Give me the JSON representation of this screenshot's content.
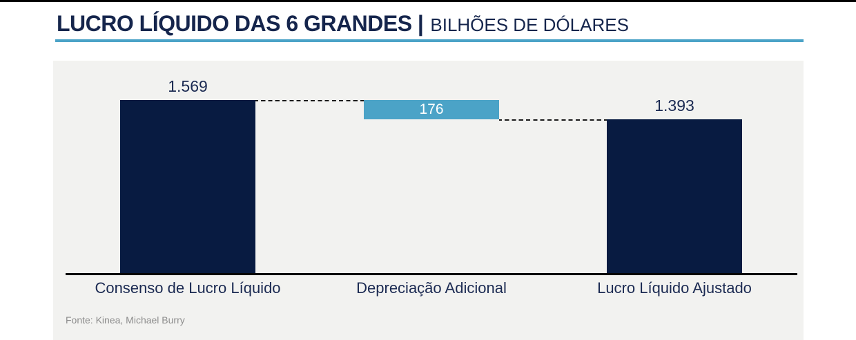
{
  "header": {
    "title_bold": "LUCRO LÍQUIDO DAS 6 GRANDES |",
    "title_light": "BILHÕES DE DÓLARES"
  },
  "footer": {
    "source": "Fonte: Kinea, Michael Burry"
  },
  "colors": {
    "navy_bar": "#081B41",
    "blue_bar": "#4BA3C7",
    "accent_underline": "#4DA3C9",
    "panel_bg": "#F2F2F0",
    "title_text": "#15254C",
    "label_text": "#1B2A52",
    "source_text": "#8C8C8C",
    "axis_line": "#050505"
  },
  "chart_data": {
    "type": "bar",
    "subtype": "waterfall",
    "title": "LUCRO LÍQUIDO DAS 6 GRANDES",
    "subtitle": "BILHÕES DE DÓLARES",
    "categories": [
      "Consenso de Lucro Líquido",
      "Depreciação Adicional",
      "Lucro Líquido Ajustado"
    ],
    "values": [
      1569,
      176,
      1393
    ],
    "value_labels": [
      "1.569",
      "176",
      "1.393"
    ],
    "roles": [
      "total",
      "decrease",
      "total"
    ],
    "bar_colors": [
      "#081B41",
      "#4BA3C7",
      "#081B41"
    ],
    "connectors": [
      {
        "from": "top of bar 1",
        "to": "top of bar 2",
        "style": "dashed"
      },
      {
        "from": "bottom of bar 2",
        "to": "top of bar 3",
        "style": "dashed"
      }
    ],
    "ylim": [
      0,
      1569
    ],
    "grid": false,
    "legend": false,
    "axis": "x-axis baseline only, no ticks",
    "source": "Fonte: Kinea, Michael Burry"
  }
}
